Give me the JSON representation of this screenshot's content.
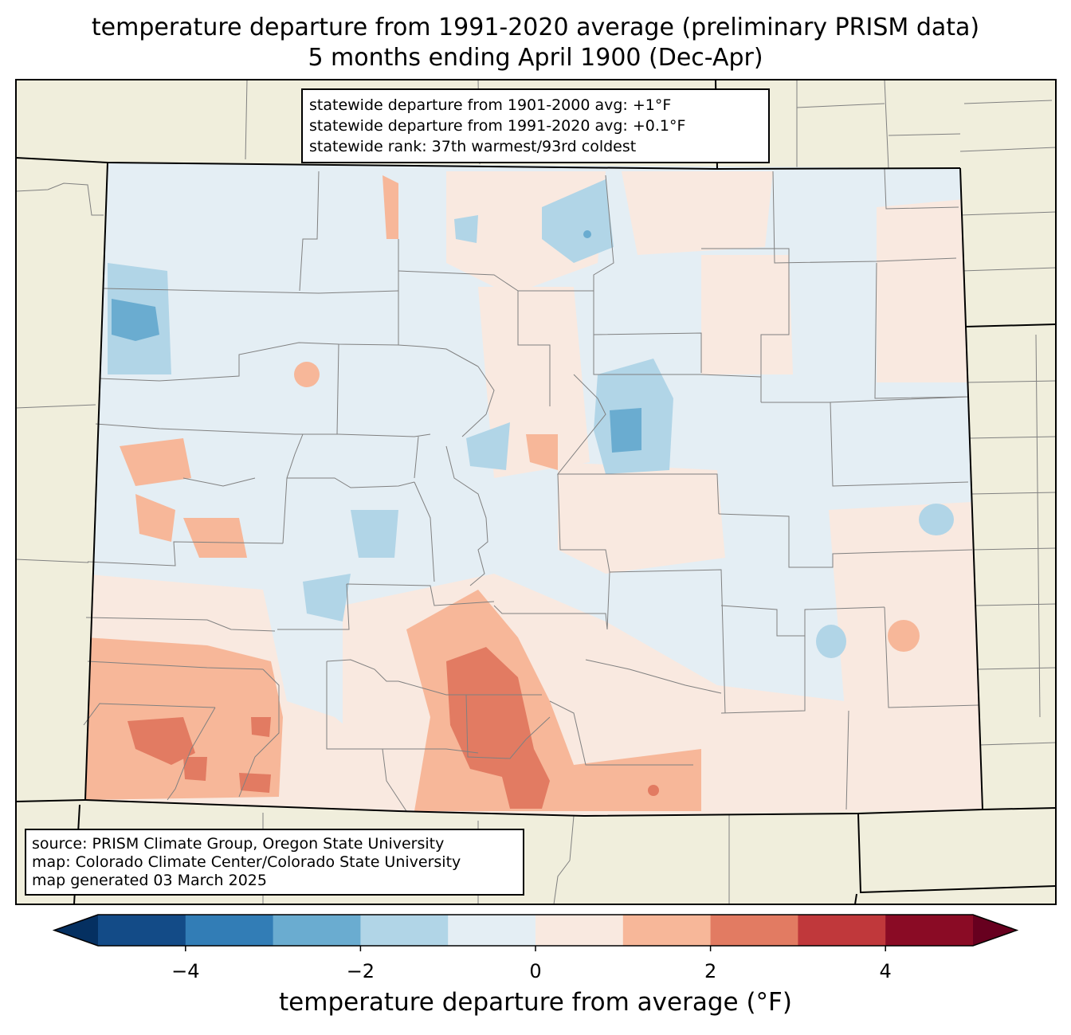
{
  "title": {
    "line1": "temperature departure from 1991-2020 average (preliminary PRISM data)",
    "line2": "5 months ending April 1900 (Dec-Apr)"
  },
  "stats": {
    "line1": "statewide departure from 1901-2000 avg: +1°F",
    "line2": "statewide departure from 1991-2020 avg: +0.1°F",
    "line3": "statewide rank: 37th warmest/93rd coldest"
  },
  "source": {
    "line1": "source: PRISM Climate Group, Oregon State University",
    "line2": "map: Colorado Climate Center/Colorado State University",
    "line3": "map generated 03 March 2025"
  },
  "colorbar": {
    "title": "temperature departure from average (°F)",
    "ticks": [
      {
        "value": -4,
        "label": "−4"
      },
      {
        "value": -2,
        "label": "−2"
      },
      {
        "value": 0,
        "label": "0"
      },
      {
        "value": 2,
        "label": "2"
      },
      {
        "value": 4,
        "label": "4"
      }
    ],
    "range": [
      -5,
      5
    ],
    "extend": "both",
    "colors": [
      "#053061",
      "#134b87",
      "#327db6",
      "#6aacd0",
      "#b1d5e7",
      "#e4eef4",
      "#f9e9e0",
      "#f7b799",
      "#e27b62",
      "#c0383b",
      "#8a0b25",
      "#67001f"
    ]
  },
  "map": {
    "background": "#f0eedc",
    "state_fill_neutral_cool": "#e4eef4",
    "state_fill_neutral_warm": "#f9e9e0",
    "state_border_color": "#000000",
    "county_line_color": "#808080"
  }
}
